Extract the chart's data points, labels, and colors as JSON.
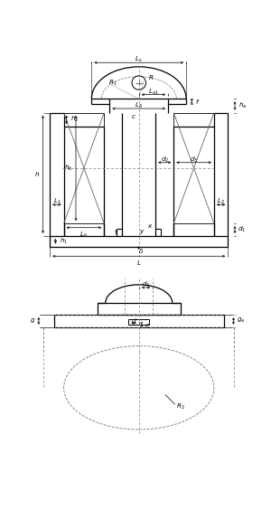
{
  "bg_color": "#ffffff",
  "lc": "#000000",
  "dc": "#777777",
  "fs": 5.2,
  "fig_w": 3.0,
  "fig_h": 5.64,
  "dpi": 100
}
